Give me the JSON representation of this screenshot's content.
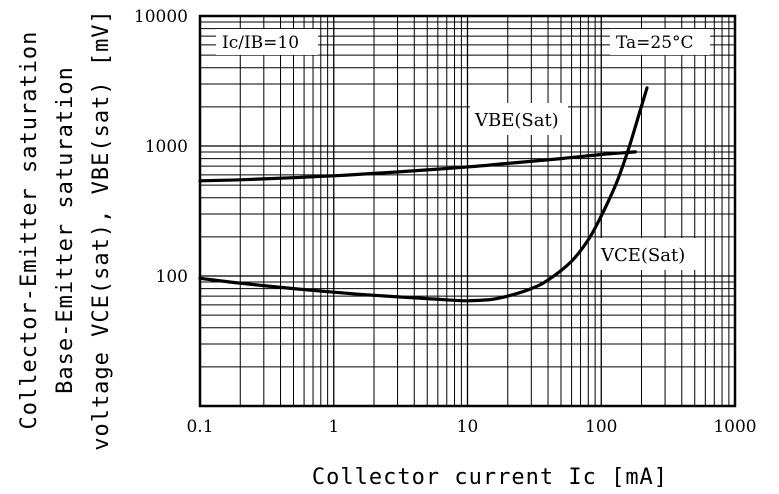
{
  "chart_data": {
    "type": "line",
    "title": "",
    "xlabel": "Collector current Ic [mA]",
    "ylabel_lines": [
      "Collector-Emitter saturation",
      "Base-Emitter saturation",
      "voltage VCE(sat), VBE(sat) [mV]"
    ],
    "x_scale": "log",
    "y_scale": "log",
    "xlim": [
      0.1,
      1000
    ],
    "ylim": [
      10,
      10000
    ],
    "grid": true,
    "x_ticks": [
      {
        "value": 0.1,
        "label": "0.1"
      },
      {
        "value": 1,
        "label": "1"
      },
      {
        "value": 10,
        "label": "10"
      },
      {
        "value": 100,
        "label": "100"
      },
      {
        "value": 1000,
        "label": "1000"
      }
    ],
    "y_ticks": [
      {
        "value": 100,
        "label": "100"
      },
      {
        "value": 1000,
        "label": "1000"
      },
      {
        "value": 10000,
        "label": "10000"
      }
    ],
    "annotations": {
      "condition_left": "Ic/IB=10",
      "condition_right": "Ta=25°C"
    },
    "series": [
      {
        "name": "VBE(Sat)",
        "x": [
          0.1,
          0.2,
          0.5,
          1,
          2,
          5,
          10,
          20,
          50,
          100,
          180
        ],
        "y": [
          540,
          550,
          570,
          590,
          615,
          655,
          690,
          735,
          800,
          860,
          900
        ]
      },
      {
        "name": "VCE(Sat)",
        "x": [
          0.1,
          0.2,
          0.5,
          1,
          2,
          5,
          8,
          10,
          15,
          20,
          30,
          40,
          60,
          80,
          100,
          130,
          160,
          190,
          220
        ],
        "y": [
          96,
          88,
          80,
          75,
          71,
          67,
          65,
          64.5,
          66,
          70,
          80,
          93,
          130,
          190,
          290,
          520,
          950,
          1700,
          2800
        ]
      }
    ]
  }
}
